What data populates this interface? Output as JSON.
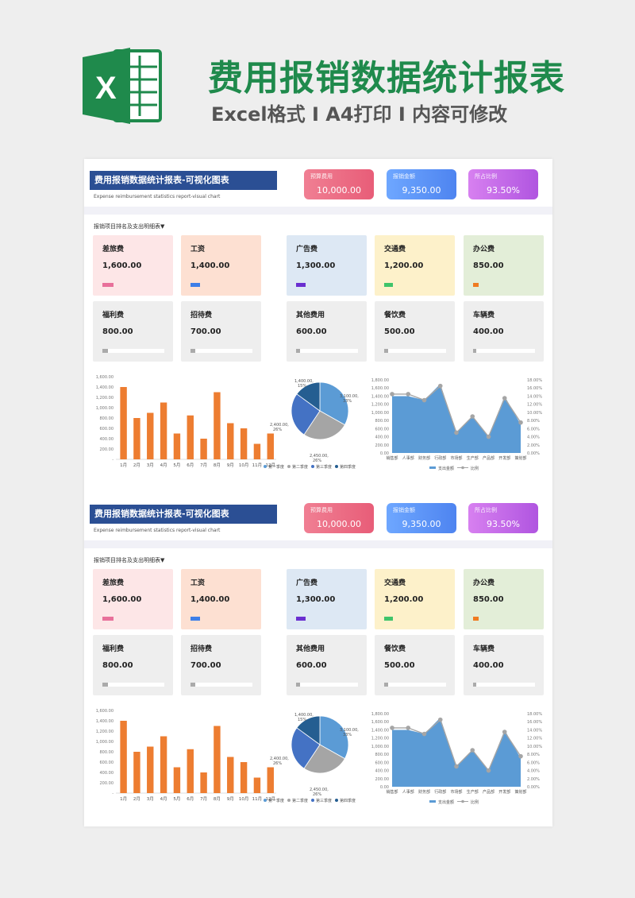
{
  "hero": {
    "title": "费用报销数据统计报表",
    "subtitle": "Excel格式 I A4打印 I 内容可修改",
    "logo_letter": "X"
  },
  "report": {
    "title": "费用报销数据统计报表-可视化图表",
    "subtitle_en": "Expense reimbursement statistics report-visual chart",
    "section_title": "报销项目排名及支出明细表▼",
    "kpis": [
      {
        "label": "预算费用",
        "value": "10,000.00"
      },
      {
        "label": "报销金额",
        "value": "9,350.00"
      },
      {
        "label": "所占比例",
        "value": "93.50%"
      }
    ],
    "cards": [
      {
        "name": "差旅费",
        "value": "1,600.00",
        "bg": "#fde6e7",
        "color": "#e8709a",
        "fill": 0.18
      },
      {
        "name": "工资",
        "value": "1,400.00",
        "bg": "#fde0d2",
        "color": "#3d7ee8",
        "fill": 0.16
      },
      {
        "name": "广告费",
        "value": "1,300.00",
        "bg": "#dde8f4",
        "color": "#6a2fd0",
        "fill": 0.15
      },
      {
        "name": "交通费",
        "value": "1,200.00",
        "bg": "#fdf1ca",
        "color": "#3fc46a",
        "fill": 0.14
      },
      {
        "name": "办公费",
        "value": "850.00",
        "bg": "#e3eed8",
        "color": "#ef7b22",
        "fill": 0.09
      },
      {
        "name": "福利费",
        "value": "800.00",
        "bg": "#eeeeee",
        "color": "#aaaaaa",
        "fill": 0.09
      },
      {
        "name": "招待费",
        "value": "700.00",
        "bg": "#eeeeee",
        "color": "#aaaaaa",
        "fill": 0.08
      },
      {
        "name": "其他费用",
        "value": "600.00",
        "bg": "#eeeeee",
        "color": "#aaaaaa",
        "fill": 0.07
      },
      {
        "name": "餐饮费",
        "value": "500.00",
        "bg": "#eeeeee",
        "color": "#aaaaaa",
        "fill": 0.06
      },
      {
        "name": "车辆费",
        "value": "400.00",
        "bg": "#eeeeee",
        "color": "#aaaaaa",
        "fill": 0.05
      }
    ]
  },
  "chart_data": [
    {
      "type": "bar",
      "categories": [
        "1月",
        "2月",
        "3月",
        "4月",
        "5月",
        "6月",
        "7月",
        "8月",
        "9月",
        "10月",
        "11月",
        "12月"
      ],
      "values": [
        1400,
        800,
        900,
        1100,
        500,
        850,
        400,
        1300,
        700,
        600,
        300,
        500
      ],
      "ylim": [
        0,
        1600
      ],
      "yticks": [
        "-",
        "200.00",
        "400.00",
        "600.00",
        "800.00",
        "1,000.00",
        "1,200.00",
        "1,400.00",
        "1,600.00"
      ],
      "color": "#ed7d31"
    },
    {
      "type": "pie",
      "labels": [
        "第一季度",
        "第二季度",
        "第三季度",
        "第四季度"
      ],
      "values": [
        3100,
        2450,
        2400,
        1400
      ],
      "data_labels": [
        "3,100.00, 33%",
        "2,450.00, 26%",
        "2,400.00, 26%",
        "1,400.00, 15%"
      ],
      "colors": [
        "#5b9bd5",
        "#a5a5a5",
        "#4472c4",
        "#255e91"
      ]
    },
    {
      "type": "area",
      "categories": [
        "销售部",
        "人事部",
        "财务部",
        "行政部",
        "市场部",
        "生产部",
        "产品部",
        "开发部",
        "策划部"
      ],
      "series": [
        {
          "name": "支出金额",
          "values": [
            1400,
            1400,
            1300,
            1700,
            500,
            900,
            400,
            1400,
            700
          ]
        },
        {
          "name": "比例",
          "values": [
            14.5,
            14.5,
            13.0,
            16.5,
            5.0,
            9.0,
            4.0,
            13.5,
            7.5
          ]
        }
      ],
      "ylim_left": [
        0,
        1800
      ],
      "ylim_right": [
        0,
        18
      ],
      "yticks_left": [
        "0.00",
        "200.00",
        "400.00",
        "600.00",
        "800.00",
        "1,000.00",
        "1,200.00",
        "1,400.00",
        "1,600.00",
        "1,800.00"
      ],
      "yticks_right": [
        "0.00%",
        "2.00%",
        "4.00%",
        "6.00%",
        "8.00%",
        "10.00%",
        "12.00%",
        "14.00%",
        "16.00%",
        "18.00%"
      ],
      "colors": [
        "#5b9bd5",
        "#a5a5a5"
      ]
    }
  ]
}
